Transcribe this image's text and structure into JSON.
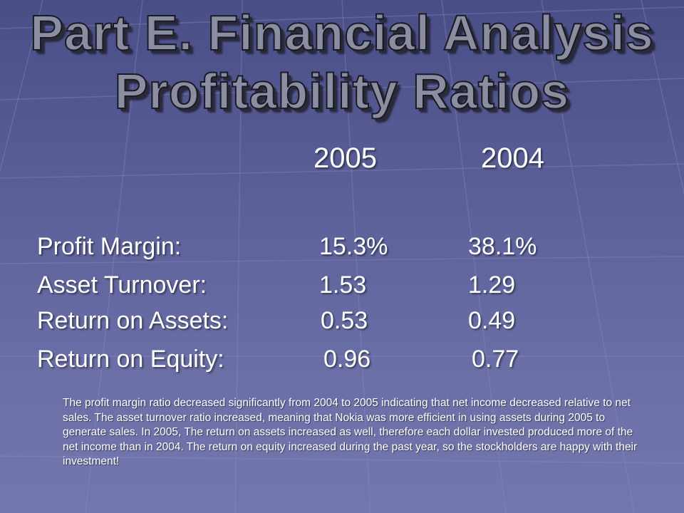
{
  "slide": {
    "title_line1": "Part E. Financial Analysis",
    "title_line2": "Profitability Ratios",
    "years": [
      "2005",
      "2004"
    ],
    "ratios": [
      {
        "label": "Profit Margin:",
        "v2005": "15.3%",
        "v2004": "38.1%"
      },
      {
        "label": "Asset Turnover:",
        "v2005": "1.53",
        "v2004": "1.29"
      },
      {
        "label": "Return on Assets:",
        "v2005": "0.53",
        "v2004": "0.49"
      },
      {
        "label": "Return on Equity:",
        "v2005": "0.96",
        "v2004": "0.77"
      }
    ],
    "note": "The profit margin ratio decreased significantly from 2004 to 2005 indicating that net income decreased relative to net sales.  The asset turnover ratio increased, meaning that Nokia was more efficient in using assets during 2005 to generate sales.   In 2005, The return on assets increased as well, therefore each dollar invested produced more of the net income than in 2004.  The return on equity increased during the past year, so the stockholders are happy with their investment!"
  },
  "colors": {
    "background": "#5a5e96",
    "title_fill": "#8a8ea0",
    "text": "#ffffff"
  }
}
